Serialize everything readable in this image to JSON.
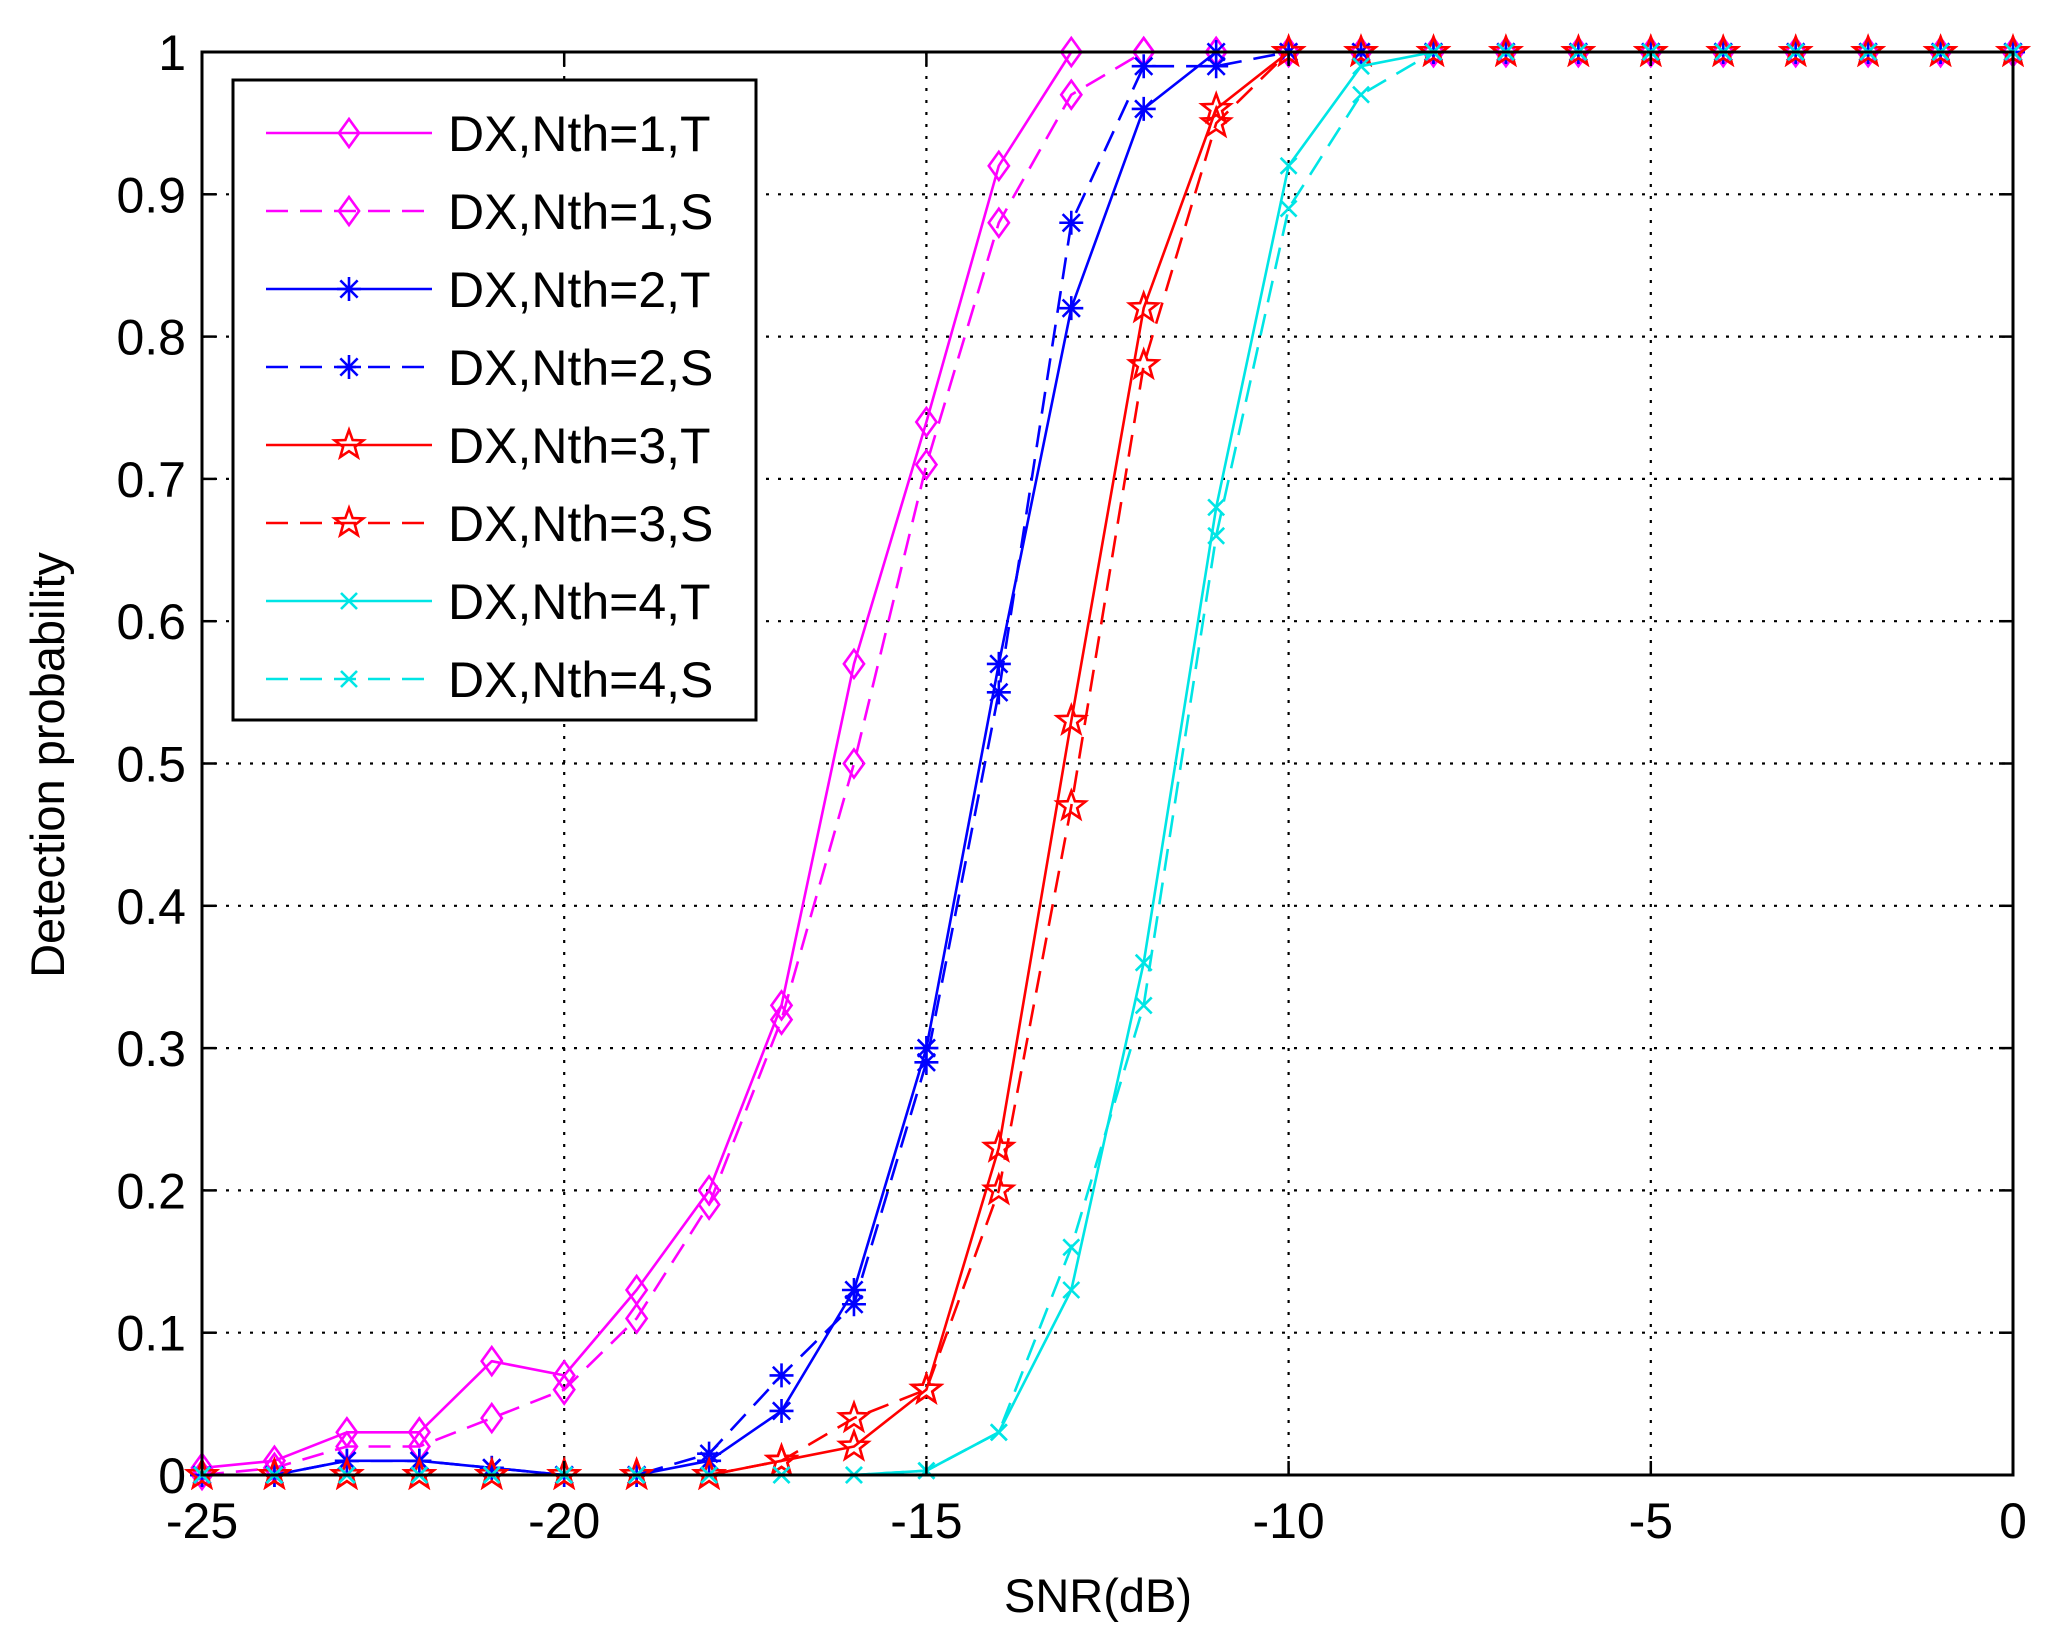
{
  "chart_data": {
    "type": "line",
    "title": "",
    "xlabel": "SNR(dB)",
    "ylabel": "Detection probability",
    "xlim": [
      -25,
      0
    ],
    "ylim": [
      0,
      1
    ],
    "grid": true,
    "legend_position": "top-left",
    "x": [
      -25,
      -24,
      -23,
      -22,
      -21,
      -20,
      -19,
      -18,
      -17,
      -16,
      -15,
      -14,
      -13,
      -12,
      -11,
      -10,
      -9,
      -8,
      -7,
      -6,
      -5,
      -4,
      -3,
      -2,
      -1,
      0
    ],
    "x_ticks": [
      -25,
      -20,
      -15,
      -10,
      -5,
      0
    ],
    "x_tick_labels": [
      "-25",
      "-20",
      "-15",
      "-10",
      "-5",
      "0"
    ],
    "y_ticks": [
      0,
      0.1,
      0.2,
      0.3,
      0.4,
      0.5,
      0.6,
      0.7,
      0.8,
      0.9,
      1
    ],
    "y_tick_labels": [
      "0",
      "0.1",
      "0.2",
      "0.3",
      "0.4",
      "0.5",
      "0.6",
      "0.7",
      "0.8",
      "0.9",
      "1"
    ],
    "series": [
      {
        "name": "DX,Nth=1,T",
        "color": "#ff00ff",
        "line_style": "solid",
        "marker": "diamond",
        "values": [
          0.005,
          0.01,
          0.03,
          0.03,
          0.08,
          0.07,
          0.13,
          0.2,
          0.33,
          0.57,
          0.74,
          0.92,
          1.0,
          1.0,
          1.0,
          1.0,
          1.0,
          1.0,
          1.0,
          1.0,
          1.0,
          1.0,
          1.0,
          1.0,
          1.0,
          1.0
        ]
      },
      {
        "name": "DX,Nth=1,S",
        "color": "#ff00ff",
        "line_style": "dashed",
        "marker": "diamond",
        "values": [
          0.0,
          0.005,
          0.02,
          0.02,
          0.04,
          0.06,
          0.11,
          0.19,
          0.32,
          0.5,
          0.71,
          0.88,
          0.97,
          1.0,
          1.0,
          1.0,
          1.0,
          1.0,
          1.0,
          1.0,
          1.0,
          1.0,
          1.0,
          1.0,
          1.0,
          1.0
        ]
      },
      {
        "name": "DX,Nth=2,T",
        "color": "#0000ff",
        "line_style": "solid",
        "marker": "asterisk",
        "values": [
          0.0,
          0.0,
          0.01,
          0.01,
          0.005,
          0.0,
          0.0,
          0.01,
          0.045,
          0.13,
          0.3,
          0.57,
          0.82,
          0.96,
          1.0,
          1.0,
          1.0,
          1.0,
          1.0,
          1.0,
          1.0,
          1.0,
          1.0,
          1.0,
          1.0,
          1.0
        ]
      },
      {
        "name": "DX,Nth=2,S",
        "color": "#0000ff",
        "line_style": "dashed",
        "marker": "asterisk",
        "values": [
          0.0,
          0.0,
          0.01,
          0.01,
          0.005,
          0.0,
          0.0,
          0.015,
          0.07,
          0.12,
          0.29,
          0.55,
          0.88,
          0.99,
          0.99,
          1.0,
          1.0,
          1.0,
          1.0,
          1.0,
          1.0,
          1.0,
          1.0,
          1.0,
          1.0,
          1.0
        ]
      },
      {
        "name": "DX,Nth=3,T",
        "color": "#ff0000",
        "line_style": "solid",
        "marker": "pentagram",
        "values": [
          0.0,
          0.0,
          0.0,
          0.0,
          0.0,
          0.0,
          0.0,
          0.0,
          0.01,
          0.02,
          0.06,
          0.23,
          0.53,
          0.82,
          0.96,
          1.0,
          1.0,
          1.0,
          1.0,
          1.0,
          1.0,
          1.0,
          1.0,
          1.0,
          1.0,
          1.0
        ]
      },
      {
        "name": "DX,Nth=3,S",
        "color": "#ff0000",
        "line_style": "dashed",
        "marker": "pentagram",
        "values": [
          0.0,
          0.0,
          0.0,
          0.0,
          0.0,
          0.0,
          0.0,
          0.0,
          0.01,
          0.04,
          0.06,
          0.2,
          0.47,
          0.78,
          0.95,
          1.0,
          1.0,
          1.0,
          1.0,
          1.0,
          1.0,
          1.0,
          1.0,
          1.0,
          1.0,
          1.0
        ]
      },
      {
        "name": "DX,Nth=4,T",
        "color": "#00e5e5",
        "line_style": "solid",
        "marker": "x",
        "values": [
          0.0,
          0.0,
          0.0,
          0.0,
          0.0,
          0.0,
          0.0,
          0.0,
          0.0,
          0.0,
          0.003,
          0.03,
          0.13,
          0.36,
          0.68,
          0.92,
          0.99,
          1.0,
          1.0,
          1.0,
          1.0,
          1.0,
          1.0,
          1.0,
          1.0,
          1.0
        ]
      },
      {
        "name": "DX,Nth=4,S",
        "color": "#00e5e5",
        "line_style": "dashed",
        "marker": "x",
        "values": [
          0.0,
          0.0,
          0.0,
          0.0,
          0.0,
          0.0,
          0.0,
          0.0,
          0.0,
          0.0,
          0.003,
          0.03,
          0.16,
          0.33,
          0.66,
          0.89,
          0.97,
          1.0,
          1.0,
          1.0,
          1.0,
          1.0,
          1.0,
          1.0,
          1.0,
          1.0
        ]
      }
    ]
  }
}
